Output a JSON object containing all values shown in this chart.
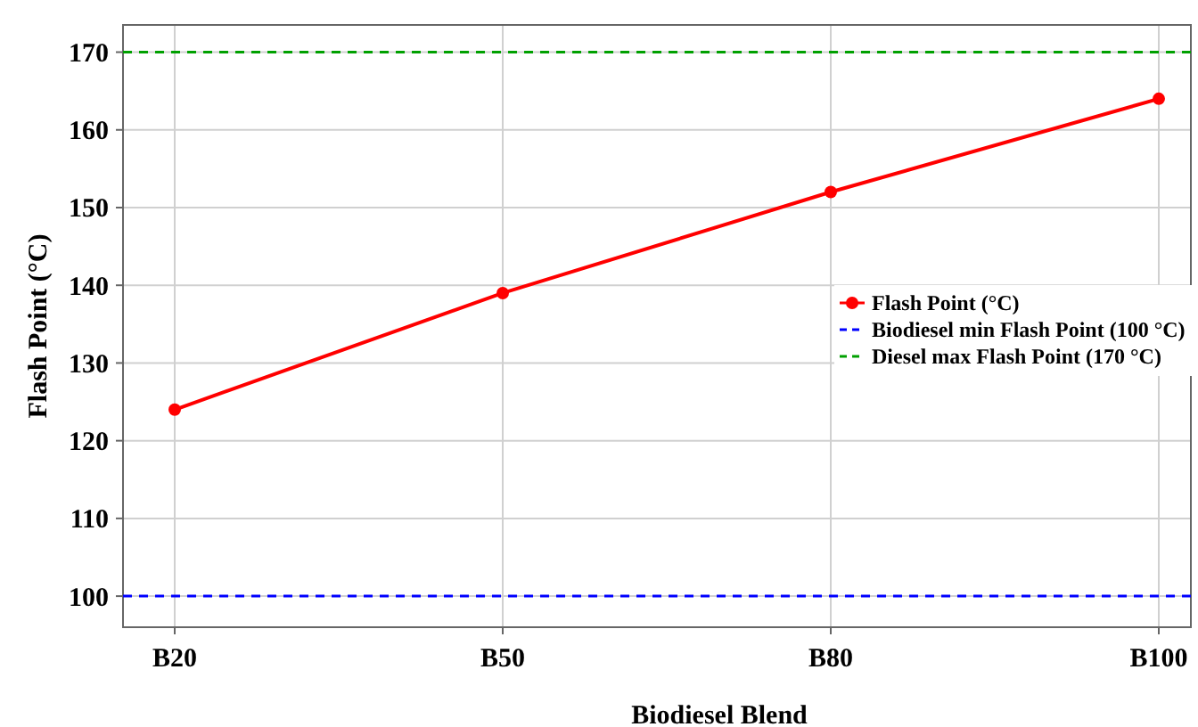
{
  "chart_data": {
    "type": "line",
    "xlabel": "Biodiesel Blend",
    "ylabel": "Flash Point (°C)",
    "categories": [
      "B20",
      "B50",
      "B80",
      "B100"
    ],
    "series": [
      {
        "name": "Flash Point (°C)",
        "color": "#ff0000",
        "values": [
          124,
          139,
          152,
          164
        ]
      }
    ],
    "ylim": [
      96,
      173.5
    ],
    "yticks": [
      100,
      110,
      120,
      130,
      140,
      150,
      160,
      170
    ],
    "ref_lines": [
      {
        "axis": "y",
        "value": 100,
        "label": "Biodiesel min Flash Point (100 °C)",
        "color": "#0000ff",
        "line_style": "dashed"
      },
      {
        "axis": "y",
        "value": 170,
        "label": "Diesel max Flash Point (170 °C)",
        "color": "#00a000",
        "line_style": "dashed"
      }
    ],
    "grid": true,
    "legend": "right",
    "marker": "circle",
    "line_style": "solid"
  }
}
